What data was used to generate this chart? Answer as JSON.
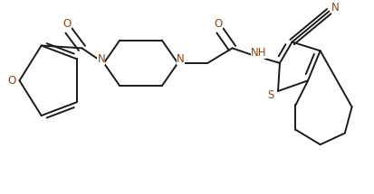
{
  "bg_color": "#ffffff",
  "line_color": "#1a1a1a",
  "heteroatom_color": "#8B4513",
  "bond_lw": 1.4,
  "font_size": 8.5,
  "fig_width": 4.13,
  "fig_height": 2.15,
  "dpi": 100,
  "xlim": [
    0,
    413
  ],
  "ylim": [
    0,
    215
  ]
}
